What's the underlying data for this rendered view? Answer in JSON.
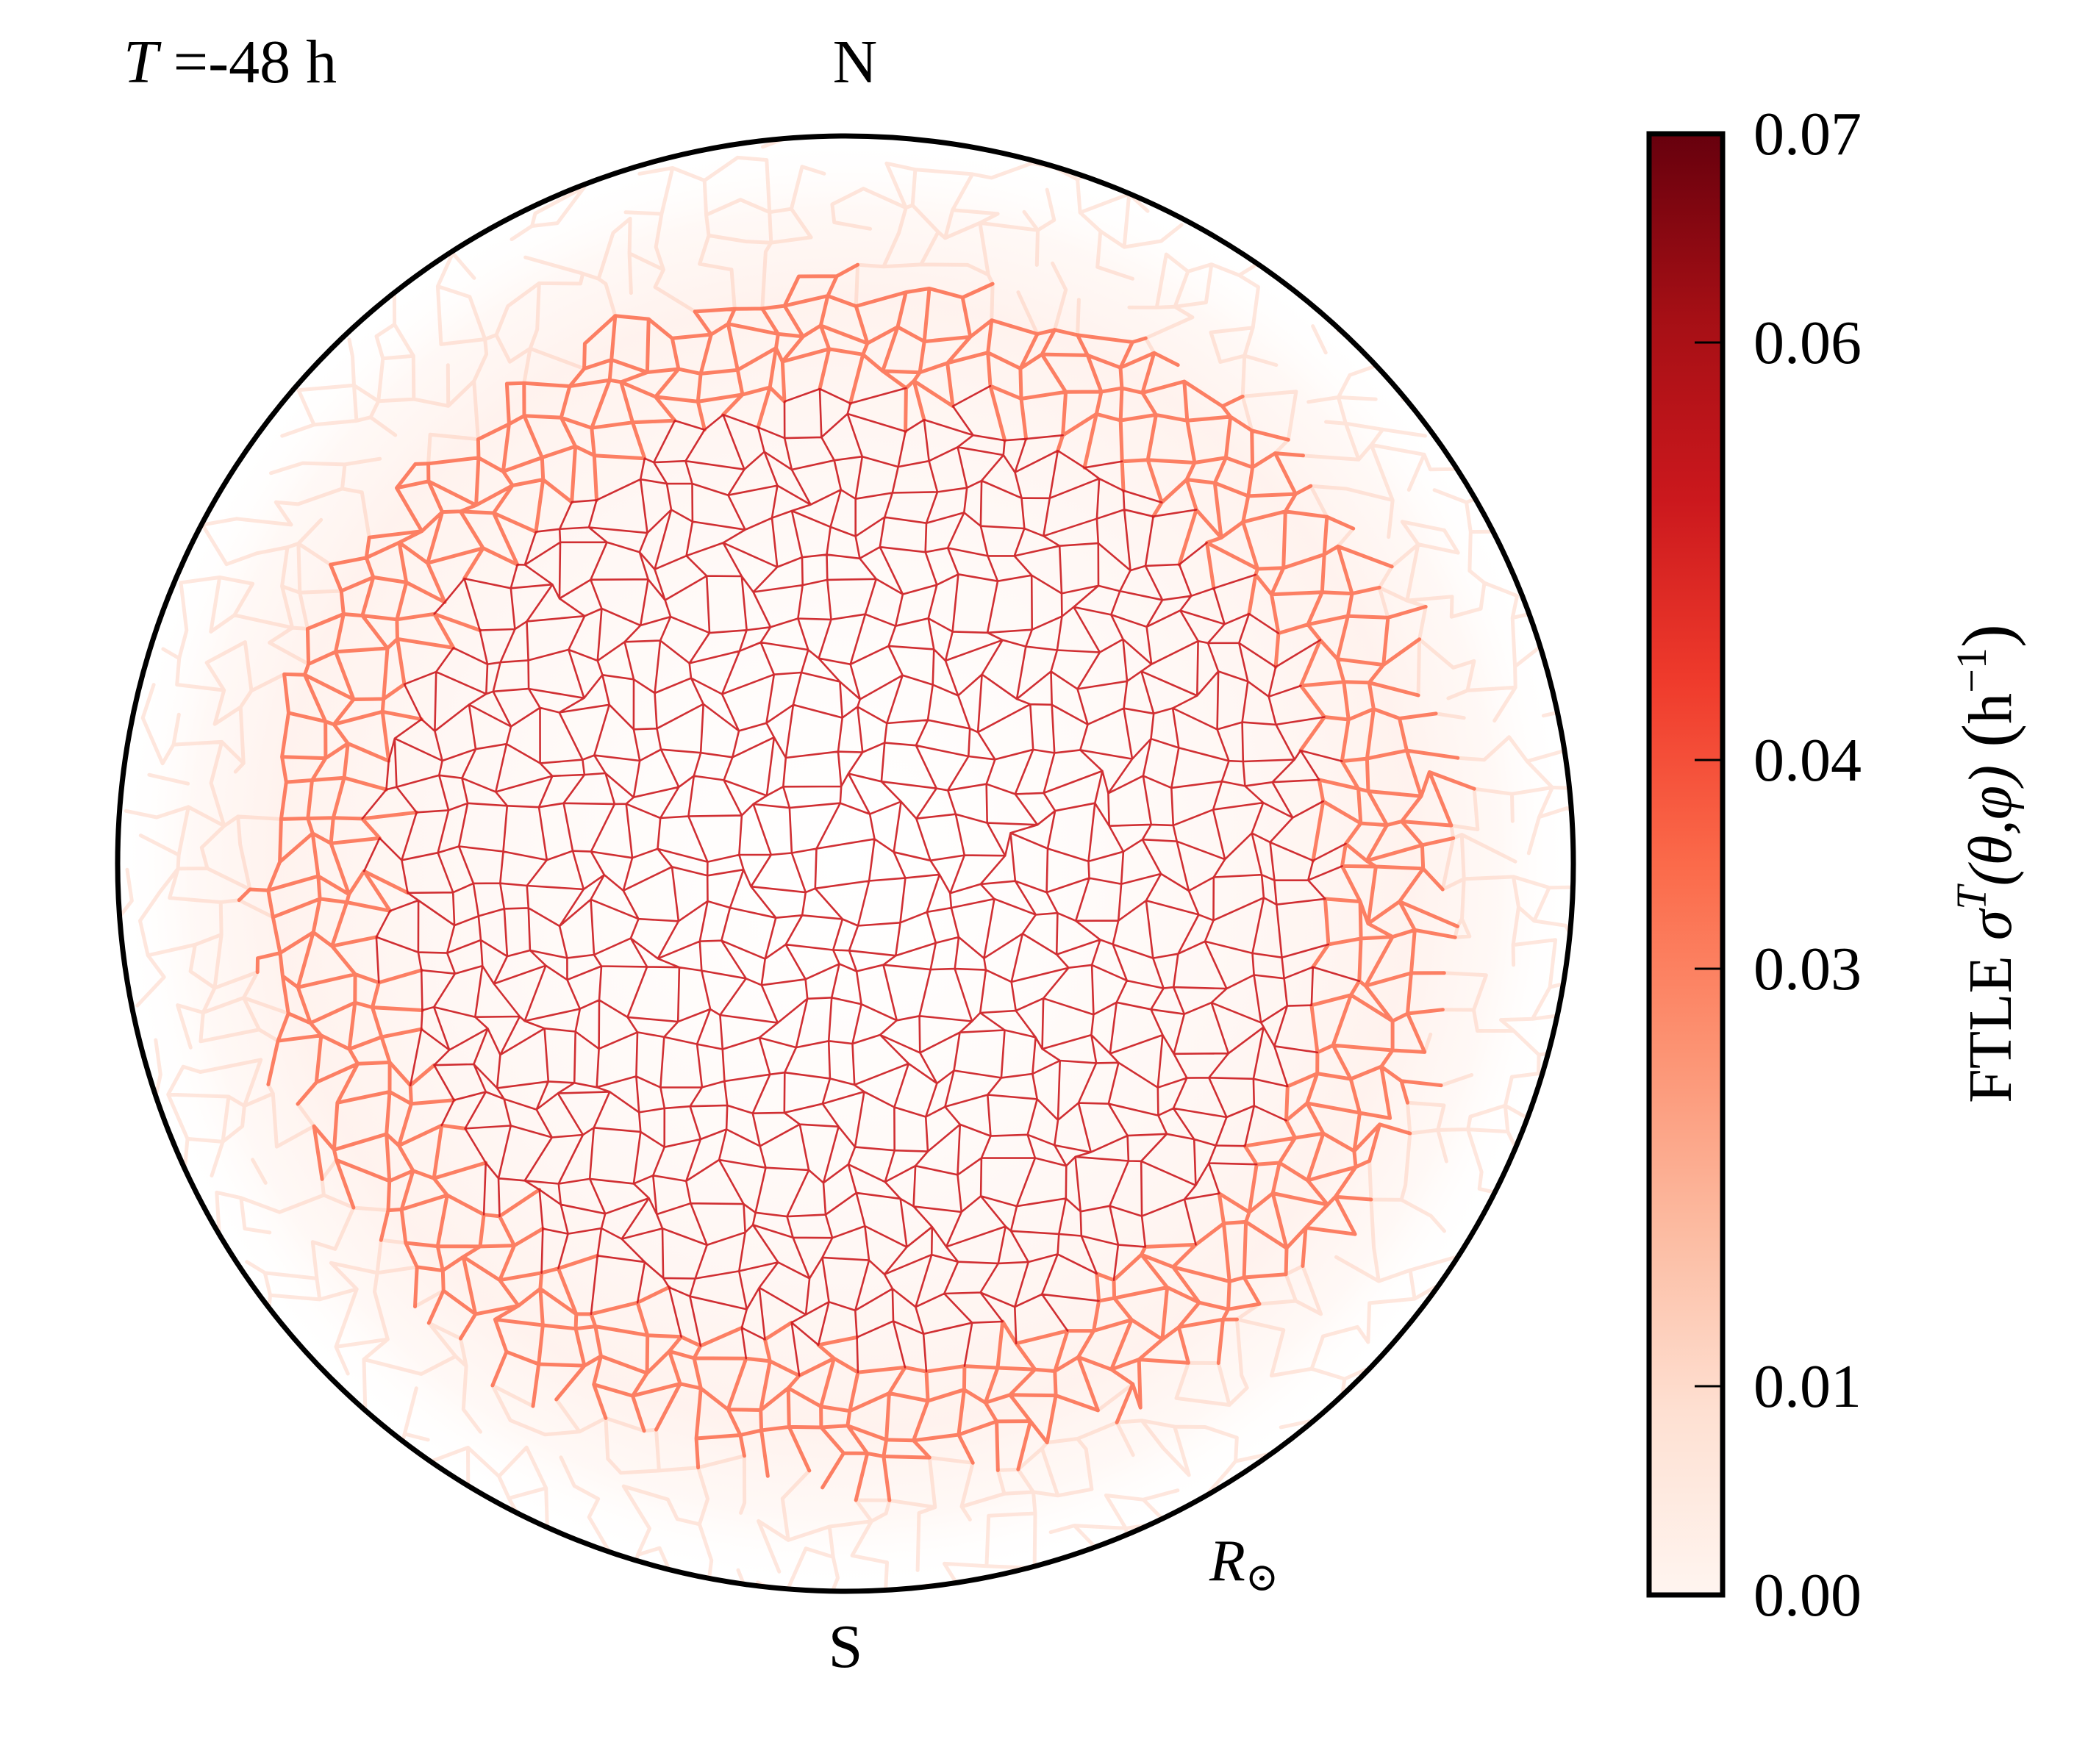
{
  "chart_data": {
    "type": "heatmap",
    "title": "",
    "time_label": {
      "var": "T",
      "text": " =-48 h"
    },
    "north_label": "N",
    "south_label": "S",
    "radius_label": {
      "var": "R",
      "sub": "⊙"
    },
    "colorbar": {
      "label_prefix": "FTLE ",
      "label_var": "σ",
      "label_sup": "T",
      "label_args": "(θ,φ)",
      "label_units_base": "h",
      "label_units_sup": "−1",
      "vmin": 0.0,
      "vmax": 0.07,
      "ticks": [
        {
          "value": 0.0,
          "label": "0.00"
        },
        {
          "value": 0.01,
          "label": "0.01"
        },
        {
          "value": 0.03,
          "label": "0.03"
        },
        {
          "value": 0.04,
          "label": "0.04"
        },
        {
          "value": 0.06,
          "label": "0.06"
        },
        {
          "value": 0.07,
          "label": "0.07"
        }
      ],
      "colormap": "Reds",
      "colors": [
        "#fff5f0",
        "#fee0d2",
        "#fcbba1",
        "#fc9272",
        "#fb6a4a",
        "#ef3b2c",
        "#cb181d",
        "#a50f15",
        "#67000d"
      ]
    },
    "field_description": "FTLE ridge network over the solar disk; high values concentrated within ~0.82 of the disk radius",
    "inner_region_fraction": 0.82,
    "grid": false,
    "legend": "none"
  }
}
